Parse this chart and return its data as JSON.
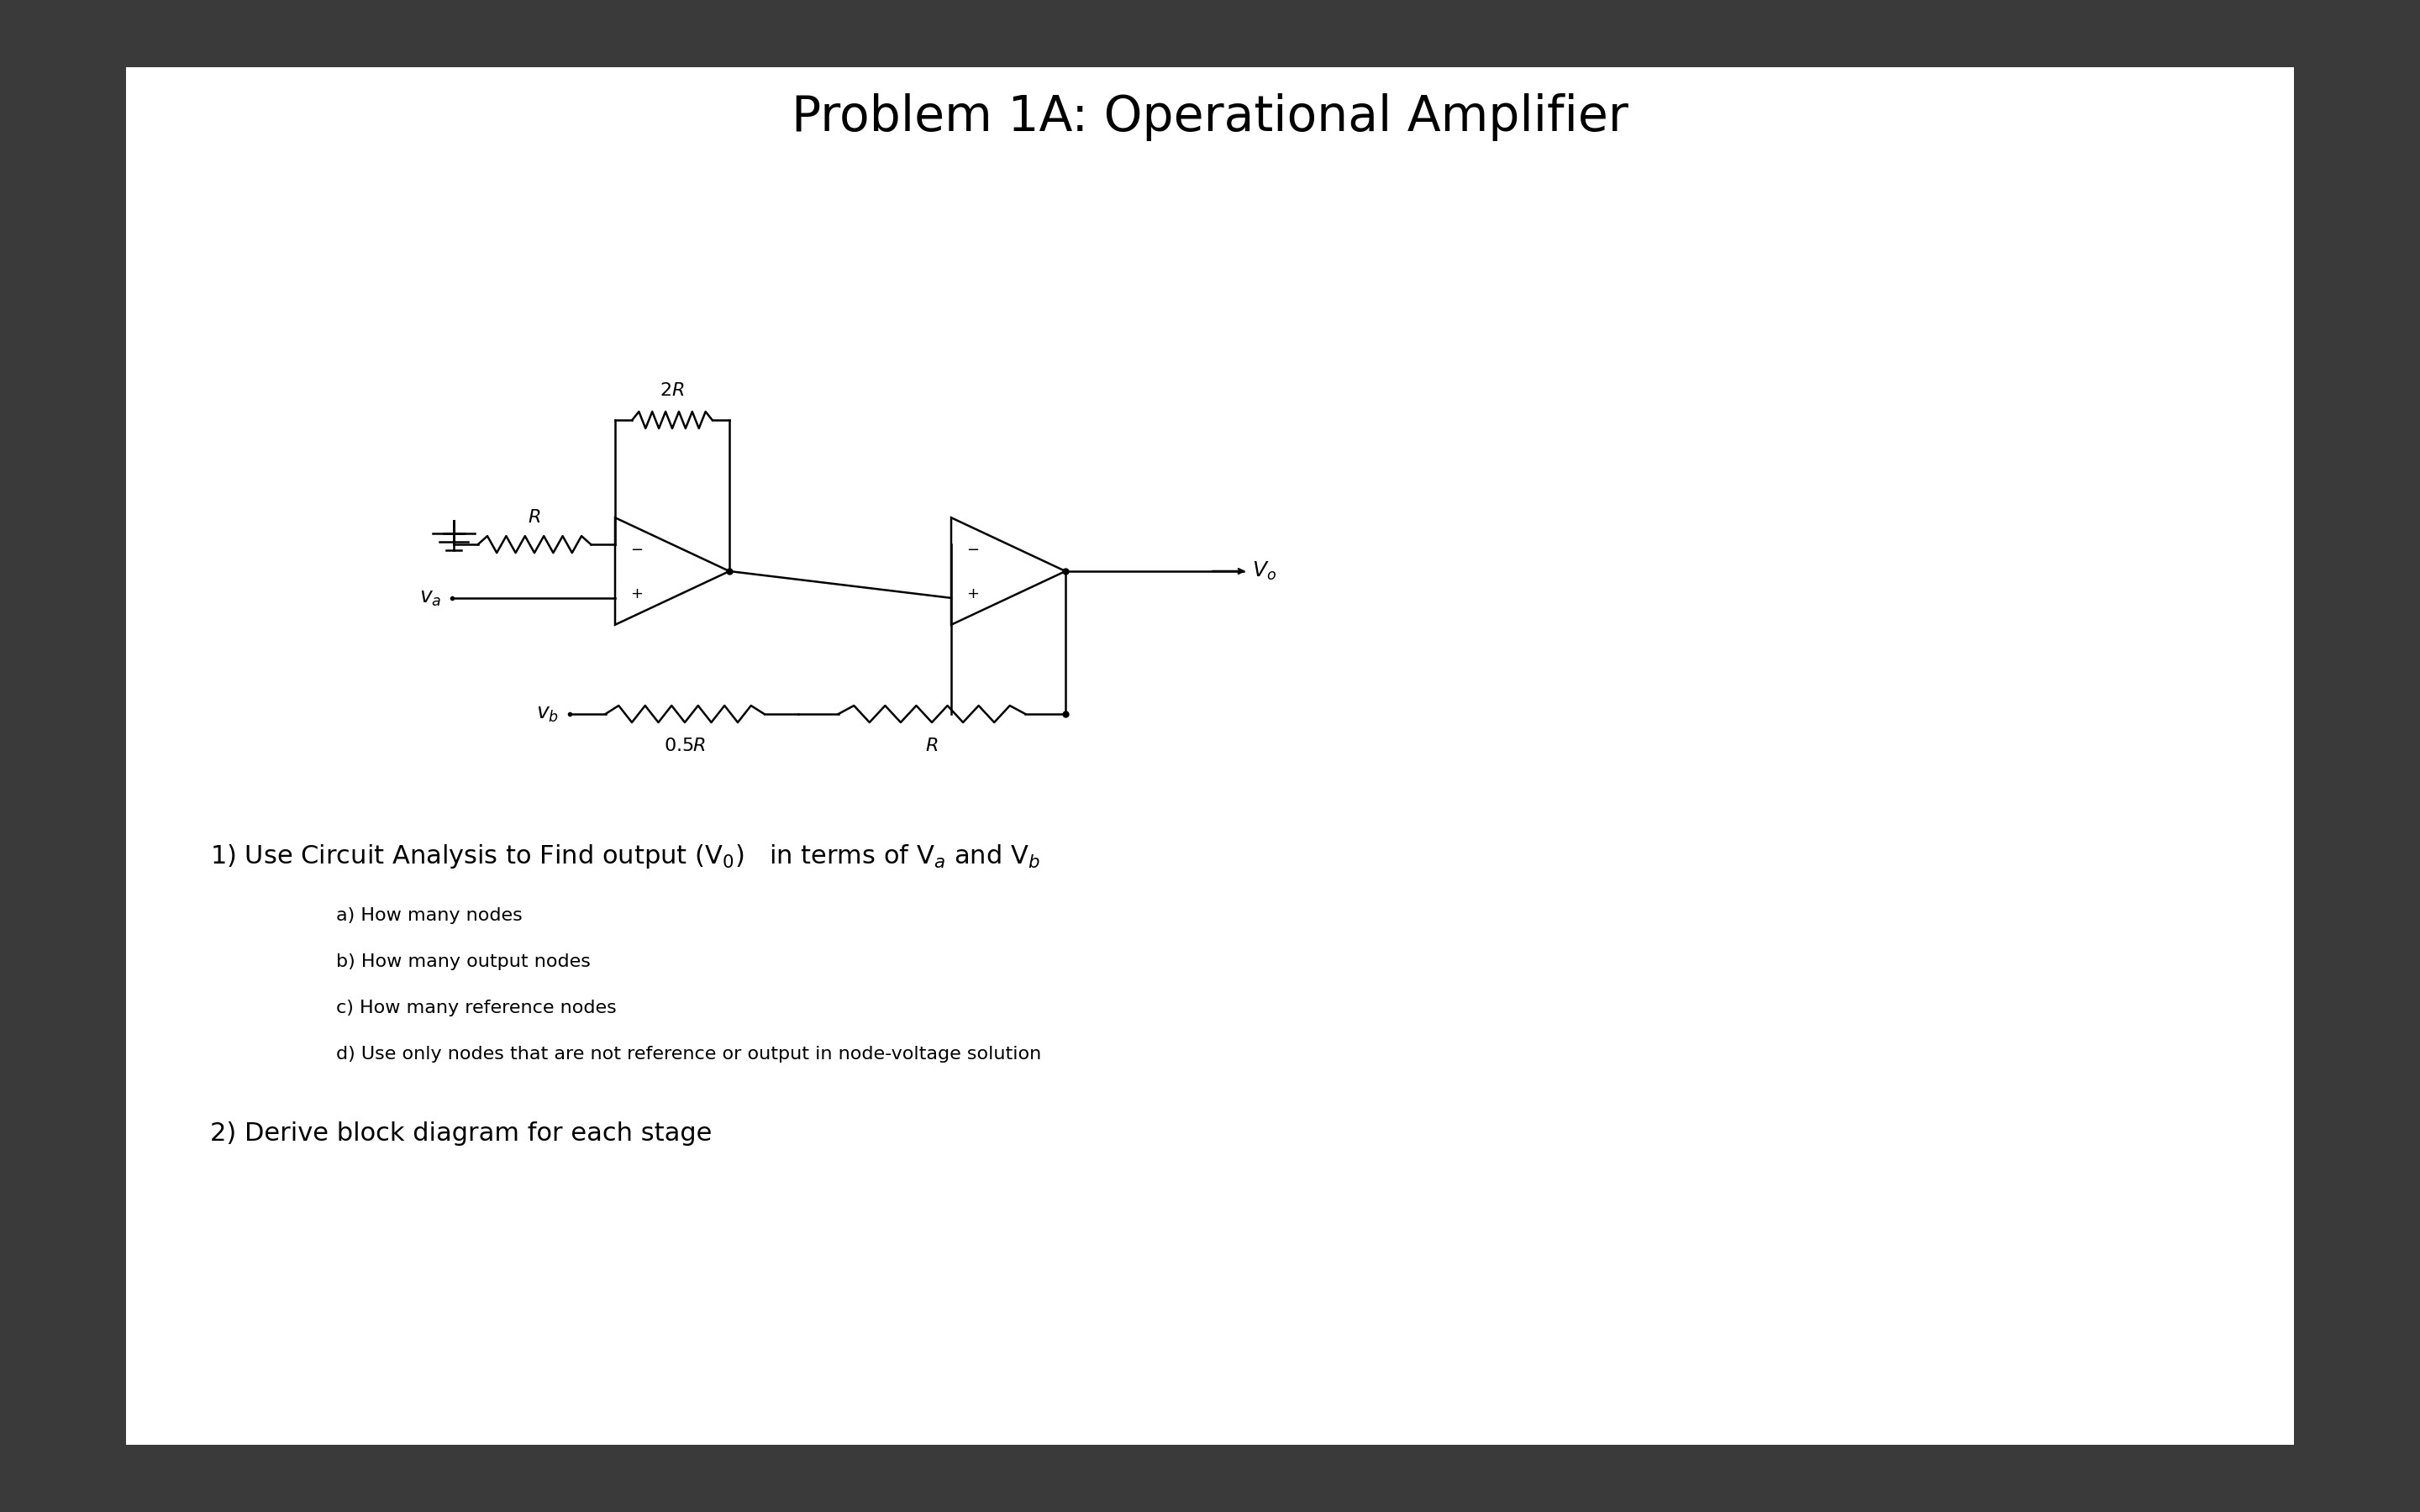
{
  "title": "Problem 1A: Operational Amplifier",
  "bg_outer": "#3a3a3a",
  "bg_inner": "#ffffff",
  "text_color": "#000000",
  "title_fontsize": 42,
  "question1": "1) Use Circuit Analysis to Find output (V₀)   in terms of Vₐ and Vₕ",
  "q1_fontsize": 22,
  "sub_items": [
    "a) How many nodes",
    "b) How many output nodes",
    "c) How many reference nodes",
    "d) Use only nodes that are not reference or output in node-voltage solution"
  ],
  "sub_fontsize": 16,
  "question2": "2) Derive block diagram for each stage",
  "q2_fontsize": 22
}
